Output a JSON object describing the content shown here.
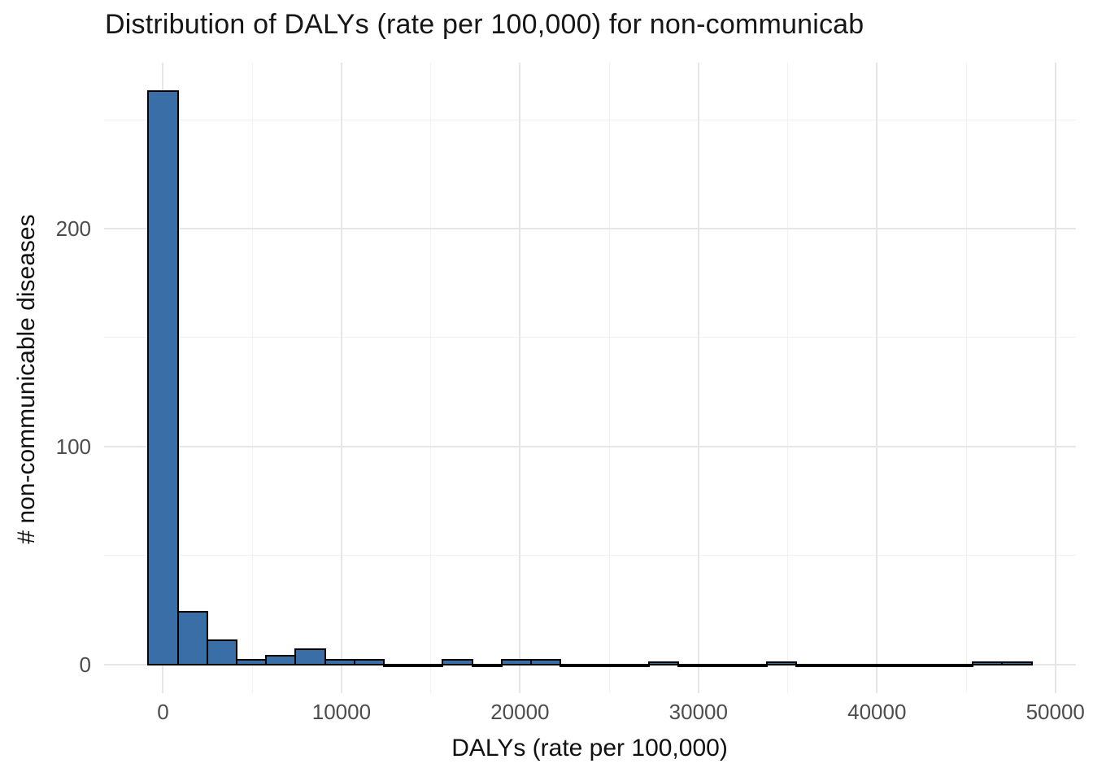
{
  "title": "Distribution of DALYs (rate per 100,000) for non-communicab",
  "chart_data": {
    "type": "bar",
    "subtype": "histogram",
    "title": "Distribution of DALYs (rate per 100,000) for non-communicab",
    "xlabel": "DALYs (rate per 100,000)",
    "ylabel": "# non-communicable diseases",
    "bin_width": 1650,
    "bin_centers": [
      0,
      1650,
      3300,
      4950,
      6600,
      8250,
      9900,
      11550,
      13200,
      14850,
      16500,
      18150,
      19800,
      21450,
      23100,
      24750,
      26400,
      28050,
      29700,
      31350,
      33000,
      34650,
      36300,
      37950,
      39600,
      41250,
      42900,
      44550,
      46200,
      47850
    ],
    "counts": [
      263,
      24,
      11,
      2,
      4,
      7,
      2,
      2,
      0,
      0,
      2,
      0,
      2,
      2,
      0,
      0,
      0,
      1,
      0,
      0,
      0,
      1,
      0,
      0,
      0,
      0,
      0,
      0,
      1,
      1
    ],
    "x_major_ticks": [
      0,
      10000,
      20000,
      30000,
      40000,
      50000
    ],
    "x_minor_ticks": [
      5000,
      15000,
      25000,
      35000,
      45000
    ],
    "y_major_ticks": [
      0,
      100,
      200
    ],
    "y_minor_ticks": [
      50,
      150,
      250
    ],
    "xlim": [
      -3300,
      51150
    ],
    "ylim": [
      -13.2,
      276.2
    ],
    "grid": true,
    "legend": "none"
  },
  "colors": {
    "bar_fill": "#3a6ea6",
    "bar_stroke": "#000000",
    "grid_major": "#e6e6e6",
    "grid_minor": "#f1f1f1",
    "tick_text": "#4d4d4d",
    "title_text": "#161616",
    "background": "#ffffff"
  }
}
